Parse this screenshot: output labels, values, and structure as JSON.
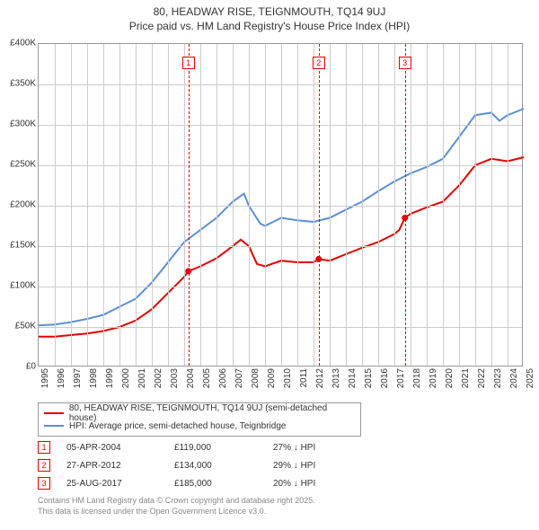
{
  "title": {
    "line1": "80, HEADWAY RISE, TEIGNMOUTH, TQ14 9UJ",
    "line2": "Price paid vs. HM Land Registry's House Price Index (HPI)"
  },
  "chart": {
    "type": "line",
    "background_color": "#ffffff",
    "grid_color": "#cccccc",
    "border_color": "#999999",
    "x_axis": {
      "min": 1995,
      "max": 2025,
      "tick_step": 1,
      "label_fontsize": 10,
      "label_rotation": -90,
      "ticks": [
        1995,
        1996,
        1997,
        1998,
        1999,
        2000,
        2001,
        2002,
        2003,
        2004,
        2005,
        2006,
        2007,
        2008,
        2009,
        2010,
        2011,
        2012,
        2013,
        2014,
        2015,
        2016,
        2017,
        2018,
        2019,
        2020,
        2021,
        2022,
        2023,
        2024,
        2025
      ]
    },
    "y_axis": {
      "min": 0,
      "max": 400000,
      "tick_step": 50000,
      "label_fontsize": 10,
      "label_prefix": "£",
      "ticks": [
        {
          "v": 0,
          "label": "£0"
        },
        {
          "v": 50000,
          "label": "£50K"
        },
        {
          "v": 100000,
          "label": "£100K"
        },
        {
          "v": 150000,
          "label": "£150K"
        },
        {
          "v": 200000,
          "label": "£200K"
        },
        {
          "v": 250000,
          "label": "£250K"
        },
        {
          "v": 300000,
          "label": "£300K"
        },
        {
          "v": 350000,
          "label": "£350K"
        },
        {
          "v": 400000,
          "label": "£400K"
        }
      ]
    },
    "series": [
      {
        "name": "80, HEADWAY RISE, TEIGNMOUTH, TQ14 9UJ (semi-detached house)",
        "color": "#e60000",
        "line_width": 2,
        "points": [
          [
            1995,
            38000
          ],
          [
            1996,
            38000
          ],
          [
            1997,
            40000
          ],
          [
            1998,
            42000
          ],
          [
            1999,
            45000
          ],
          [
            2000,
            50000
          ],
          [
            2001,
            58000
          ],
          [
            2002,
            72000
          ],
          [
            2003,
            92000
          ],
          [
            2004,
            112000
          ],
          [
            2004.26,
            119000
          ],
          [
            2005,
            125000
          ],
          [
            2006,
            135000
          ],
          [
            2007,
            150000
          ],
          [
            2007.5,
            158000
          ],
          [
            2008,
            150000
          ],
          [
            2008.5,
            128000
          ],
          [
            2009,
            125000
          ],
          [
            2010,
            132000
          ],
          [
            2011,
            130000
          ],
          [
            2012,
            130000
          ],
          [
            2012.32,
            134000
          ],
          [
            2013,
            132000
          ],
          [
            2014,
            140000
          ],
          [
            2015,
            148000
          ],
          [
            2016,
            155000
          ],
          [
            2017,
            165000
          ],
          [
            2017.3,
            170000
          ],
          [
            2017.65,
            185000
          ],
          [
            2018,
            190000
          ],
          [
            2019,
            198000
          ],
          [
            2020,
            205000
          ],
          [
            2021,
            225000
          ],
          [
            2022,
            250000
          ],
          [
            2023,
            258000
          ],
          [
            2024,
            255000
          ],
          [
            2025,
            260000
          ]
        ]
      },
      {
        "name": "HPI: Average price, semi-detached house, Teignbridge",
        "color": "#5b8fd6",
        "line_width": 2,
        "points": [
          [
            1995,
            52000
          ],
          [
            1996,
            53000
          ],
          [
            1997,
            56000
          ],
          [
            1998,
            60000
          ],
          [
            1999,
            65000
          ],
          [
            2000,
            75000
          ],
          [
            2001,
            85000
          ],
          [
            2002,
            105000
          ],
          [
            2003,
            130000
          ],
          [
            2004,
            155000
          ],
          [
            2005,
            170000
          ],
          [
            2006,
            185000
          ],
          [
            2007,
            205000
          ],
          [
            2007.7,
            215000
          ],
          [
            2008,
            200000
          ],
          [
            2008.7,
            178000
          ],
          [
            2009,
            175000
          ],
          [
            2010,
            185000
          ],
          [
            2011,
            182000
          ],
          [
            2012,
            180000
          ],
          [
            2013,
            185000
          ],
          [
            2014,
            195000
          ],
          [
            2015,
            205000
          ],
          [
            2016,
            218000
          ],
          [
            2017,
            230000
          ],
          [
            2018,
            240000
          ],
          [
            2019,
            248000
          ],
          [
            2020,
            258000
          ],
          [
            2021,
            285000
          ],
          [
            2022,
            312000
          ],
          [
            2023,
            315000
          ],
          [
            2023.5,
            305000
          ],
          [
            2024,
            312000
          ],
          [
            2025,
            320000
          ]
        ]
      }
    ],
    "markers": [
      {
        "n": "1",
        "x": 2004.26,
        "y_series0": 119000
      },
      {
        "n": "2",
        "x": 2012.32,
        "y_series0": 134000
      },
      {
        "n": "3",
        "x": 2017.65,
        "y_series0": 185000
      }
    ]
  },
  "legend": {
    "items": [
      {
        "color": "#e60000",
        "label": "80, HEADWAY RISE, TEIGNMOUTH, TQ14 9UJ (semi-detached house)"
      },
      {
        "color": "#5b8fd6",
        "label": "HPI: Average price, semi-detached house, Teignbridge"
      }
    ]
  },
  "sales_table": {
    "marker_color": "#e60000",
    "rows": [
      {
        "n": "1",
        "date": "05-APR-2004",
        "price": "£119,000",
        "diff": "27% ↓ HPI"
      },
      {
        "n": "2",
        "date": "27-APR-2012",
        "price": "£134,000",
        "diff": "29% ↓ HPI"
      },
      {
        "n": "3",
        "date": "25-AUG-2017",
        "price": "£185,000",
        "diff": "20% ↓ HPI"
      }
    ]
  },
  "license": {
    "line1": "Contains HM Land Registry data © Crown copyright and database right 2025.",
    "line2": "This data is licensed under the Open Government Licence v3.0."
  }
}
